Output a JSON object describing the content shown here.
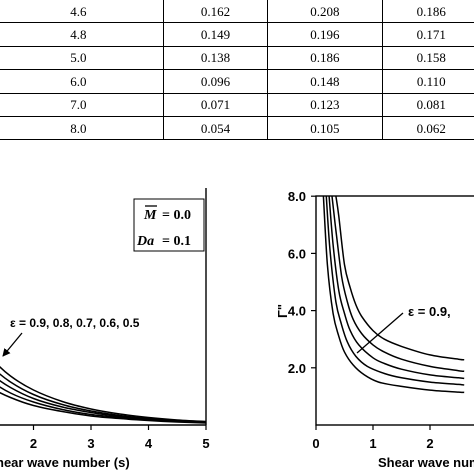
{
  "table": {
    "rows": [
      [
        "4.6",
        "0.162",
        "0.208",
        "0.186"
      ],
      [
        "4.8",
        "0.149",
        "0.196",
        "0.171"
      ],
      [
        "5.0",
        "0.138",
        "0.186",
        "0.158"
      ],
      [
        "6.0",
        "0.096",
        "0.148",
        "0.110"
      ],
      [
        "7.0",
        "0.071",
        "0.123",
        "0.081"
      ],
      [
        "8.0",
        "0.054",
        "0.105",
        "0.062"
      ]
    ]
  },
  "chart_data": [
    {
      "type": "line",
      "xlabel": "hear wave number (s)",
      "x_ticks": [
        "2",
        "3",
        "4",
        "5"
      ],
      "xlim": [
        1.1,
        5
      ],
      "ylim": [
        0,
        5
      ],
      "params": {
        "M_symbol": "M",
        "M_value": "= 0.0",
        "Da_symbol": "Da",
        "Da_value": "= 0.1"
      },
      "annotation": "ε = 0.9, 0.8, 0.7, 0.6, 0.5",
      "series": [
        {
          "x": [
            1.1,
            1.3,
            1.6,
            2.0,
            2.5,
            3.0,
            3.5,
            4.0,
            4.5,
            5.0
          ],
          "y": [
            1.62,
            1.3,
            0.98,
            0.7,
            0.47,
            0.32,
            0.22,
            0.15,
            0.1,
            0.07
          ]
        },
        {
          "x": [
            1.1,
            1.3,
            1.6,
            2.0,
            2.5,
            3.0,
            3.5,
            4.0,
            4.5,
            5.0
          ],
          "y": [
            1.42,
            1.14,
            0.86,
            0.61,
            0.41,
            0.28,
            0.19,
            0.13,
            0.09,
            0.06
          ]
        },
        {
          "x": [
            1.1,
            1.3,
            1.6,
            2.0,
            2.5,
            3.0,
            3.5,
            4.0,
            4.5,
            5.0
          ],
          "y": [
            1.24,
            0.99,
            0.75,
            0.53,
            0.36,
            0.25,
            0.17,
            0.12,
            0.08,
            0.05
          ]
        },
        {
          "x": [
            1.1,
            1.3,
            1.6,
            2.0,
            2.5,
            3.0,
            3.5,
            4.0,
            4.5,
            5.0
          ],
          "y": [
            1.06,
            0.85,
            0.64,
            0.46,
            0.31,
            0.21,
            0.15,
            0.1,
            0.07,
            0.05
          ]
        },
        {
          "x": [
            1.1,
            1.3,
            1.6,
            2.0,
            2.5,
            3.0,
            3.5,
            4.0,
            4.5,
            5.0
          ],
          "y": [
            0.9,
            0.72,
            0.55,
            0.39,
            0.27,
            0.18,
            0.13,
            0.09,
            0.06,
            0.04
          ]
        }
      ]
    },
    {
      "type": "line",
      "ylabel": "Γ\"",
      "xlabel": "Shear wave number",
      "x_ticks": [
        "0",
        "1",
        "2"
      ],
      "y_ticks": [
        "2.0",
        "4.0",
        "6.0",
        "8.0"
      ],
      "xlim": [
        0,
        2.6
      ],
      "ylim": [
        0,
        8
      ],
      "annotation": "ε = 0.9,",
      "series": [
        {
          "x": [
            0.35,
            0.4,
            0.5,
            0.6,
            0.7,
            0.8,
            1.0,
            1.2,
            1.5,
            2.0,
            2.5,
            2.6
          ],
          "y": [
            8.0,
            7.3,
            5.6,
            4.8,
            4.2,
            3.8,
            3.3,
            3.0,
            2.75,
            2.45,
            2.3,
            2.28
          ]
        },
        {
          "x": [
            0.28,
            0.35,
            0.45,
            0.55,
            0.65,
            0.8,
            1.0,
            1.2,
            1.5,
            2.0,
            2.5,
            2.6
          ],
          "y": [
            8.0,
            6.8,
            5.2,
            4.3,
            3.7,
            3.2,
            2.8,
            2.55,
            2.3,
            2.05,
            1.9,
            1.88
          ]
        },
        {
          "x": [
            0.23,
            0.3,
            0.4,
            0.5,
            0.6,
            0.75,
            1.0,
            1.2,
            1.5,
            2.0,
            2.5,
            2.6
          ],
          "y": [
            8.0,
            6.3,
            4.7,
            3.9,
            3.3,
            2.8,
            2.35,
            2.15,
            1.95,
            1.75,
            1.65,
            1.63
          ]
        },
        {
          "x": [
            0.18,
            0.25,
            0.35,
            0.45,
            0.55,
            0.7,
            0.9,
            1.2,
            1.5,
            2.0,
            2.5,
            2.6
          ],
          "y": [
            8.0,
            6.0,
            4.3,
            3.5,
            2.9,
            2.4,
            2.05,
            1.8,
            1.65,
            1.5,
            1.42,
            1.4
          ]
        },
        {
          "x": [
            0.13,
            0.2,
            0.3,
            0.4,
            0.5,
            0.65,
            0.85,
            1.1,
            1.5,
            2.0,
            2.5,
            2.6
          ],
          "y": [
            8.0,
            5.6,
            3.9,
            3.1,
            2.55,
            2.1,
            1.75,
            1.5,
            1.35,
            1.22,
            1.15,
            1.14
          ]
        }
      ]
    }
  ]
}
